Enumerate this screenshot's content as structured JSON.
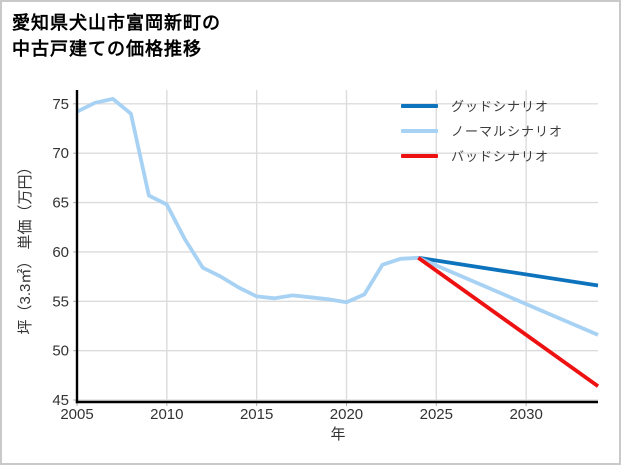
{
  "title": {
    "line1": "愛知県犬山市富岡新町の",
    "line2": "中古戸建ての価格推移"
  },
  "chart_data": {
    "type": "line",
    "title": "愛知県犬山市富岡新町の中古戸建ての価格推移",
    "xlabel": "年",
    "ylabel": "坪（3.3㎡） 単価（万円）",
    "xlim": [
      2005,
      2034
    ],
    "ylim": [
      44.8,
      76.4
    ],
    "xticks": [
      2005,
      2010,
      2015,
      2020,
      2025,
      2030
    ],
    "yticks": [
      45,
      50,
      55,
      60,
      65,
      70,
      75
    ],
    "grid": true,
    "legend_position": "upper right",
    "colors": {
      "history": "#a8d2f4",
      "good": "#0e73bd",
      "normal": "#a8d2f4",
      "bad": "#ee1111",
      "grid": "#dcdcdc",
      "axis": "#000000"
    },
    "series": [
      {
        "id": "history",
        "x": [
          2005,
          2006,
          2007,
          2008,
          2009,
          2010,
          2011,
          2012,
          2013,
          2014,
          2015,
          2016,
          2017,
          2018,
          2019,
          2020,
          2021,
          2022,
          2023,
          2024
        ],
        "y": [
          74.2,
          75.1,
          75.5,
          74.0,
          65.7,
          64.8,
          61.3,
          58.4,
          57.5,
          56.4,
          55.5,
          55.3,
          55.6,
          55.4,
          55.2,
          54.9,
          55.7,
          58.7,
          59.3,
          59.4
        ]
      },
      {
        "id": "good",
        "x": [
          2024,
          2034
        ],
        "y": [
          59.4,
          56.6
        ]
      },
      {
        "id": "normal",
        "x": [
          2024,
          2034
        ],
        "y": [
          59.4,
          51.6
        ]
      },
      {
        "id": "bad",
        "x": [
          2024,
          2034
        ],
        "y": [
          59.4,
          46.4
        ]
      }
    ],
    "legend": [
      {
        "label": "グッドシナリオ",
        "color": "#0e73bd"
      },
      {
        "label": "ノーマルシナリオ",
        "color": "#a8d2f4"
      },
      {
        "label": "バッドシナリオ",
        "color": "#ee1111"
      }
    ]
  }
}
